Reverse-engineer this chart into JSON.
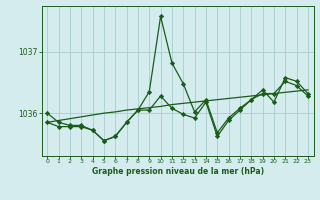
{
  "background_color": "#d4ecee",
  "grid_color": "#a8cccc",
  "line_color": "#1a5c1a",
  "xlabel": "Graphe pression niveau de la mer (hPa)",
  "yticks": [
    1036,
    1037
  ],
  "ylim": [
    1035.3,
    1037.75
  ],
  "xlim": [
    -0.5,
    23.5
  ],
  "xticks": [
    0,
    1,
    2,
    3,
    4,
    5,
    6,
    7,
    8,
    9,
    10,
    11,
    12,
    13,
    14,
    15,
    16,
    17,
    18,
    19,
    20,
    21,
    22,
    23
  ],
  "series1_x": [
    0,
    1,
    2,
    3,
    4,
    5,
    6,
    7,
    8,
    9,
    10,
    11,
    12,
    13,
    14,
    15,
    16,
    17,
    18,
    19,
    20,
    21,
    22,
    23
  ],
  "series1": [
    1036.0,
    1035.85,
    1035.8,
    1035.8,
    1035.72,
    1035.55,
    1035.62,
    1035.85,
    1036.05,
    1036.35,
    1037.58,
    1036.82,
    1036.48,
    1036.02,
    1036.22,
    1035.68,
    1035.92,
    1036.08,
    1036.22,
    1036.38,
    1036.18,
    1036.58,
    1036.52,
    1036.32
  ],
  "series2_x": [
    0,
    1,
    2,
    3,
    4,
    5,
    6,
    7,
    8,
    9,
    10,
    11,
    12,
    13,
    14,
    15,
    16,
    17,
    18,
    19,
    20,
    21,
    22,
    23
  ],
  "series2": [
    1035.85,
    1035.78,
    1035.78,
    1035.78,
    1035.72,
    1035.55,
    1035.62,
    1035.85,
    1036.05,
    1036.05,
    1036.28,
    1036.08,
    1035.98,
    1035.92,
    1036.18,
    1035.62,
    1035.88,
    1036.05,
    1036.22,
    1036.32,
    1036.32,
    1036.52,
    1036.45,
    1036.28
  ],
  "series3_x": [
    0,
    1,
    2,
    3,
    4,
    5,
    6,
    7,
    8,
    9,
    10,
    11,
    12,
    13,
    14,
    15,
    16,
    17,
    18,
    19,
    20,
    21,
    22,
    23
  ],
  "series3": [
    1035.85,
    1035.88,
    1035.91,
    1035.94,
    1035.97,
    1036.0,
    1036.02,
    1036.05,
    1036.07,
    1036.09,
    1036.11,
    1036.14,
    1036.16,
    1036.18,
    1036.2,
    1036.22,
    1036.24,
    1036.26,
    1036.28,
    1036.3,
    1036.32,
    1036.34,
    1036.36,
    1036.38
  ]
}
